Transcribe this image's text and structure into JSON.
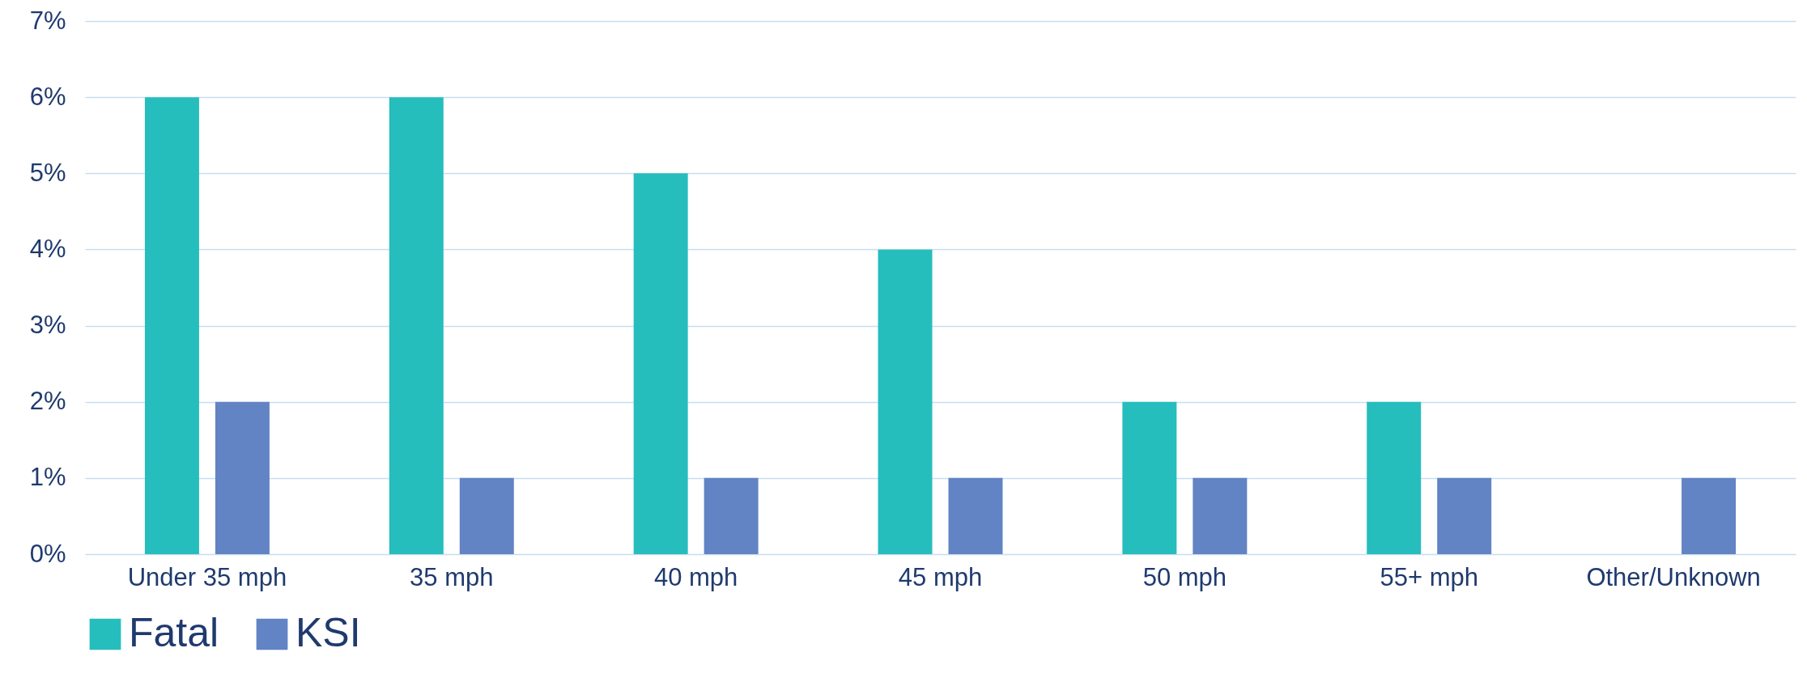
{
  "chart_data": {
    "type": "bar",
    "categories": [
      "Under 35 mph",
      "35 mph",
      "40 mph",
      "45 mph",
      "50 mph",
      "55+ mph",
      "Other/Unknown"
    ],
    "series": [
      {
        "name": "Fatal",
        "color": "#26bdbd",
        "values": [
          6,
          6,
          5,
          4,
          2,
          2,
          null
        ]
      },
      {
        "name": "KSI",
        "color": "#6283c4",
        "values": [
          2,
          1,
          1,
          1,
          1,
          1,
          1
        ]
      }
    ],
    "ylim": [
      0,
      7
    ],
    "yticks": [
      {
        "value": 0,
        "label": "0%"
      },
      {
        "value": 1,
        "label": "1%"
      },
      {
        "value": 2,
        "label": "2%"
      },
      {
        "value": 3,
        "label": "3%"
      },
      {
        "value": 4,
        "label": "4%"
      },
      {
        "value": 5,
        "label": "5%"
      },
      {
        "value": 6,
        "label": "6%"
      },
      {
        "value": 7,
        "label": "7%"
      }
    ],
    "grid": "y",
    "legend": "bottom"
  }
}
